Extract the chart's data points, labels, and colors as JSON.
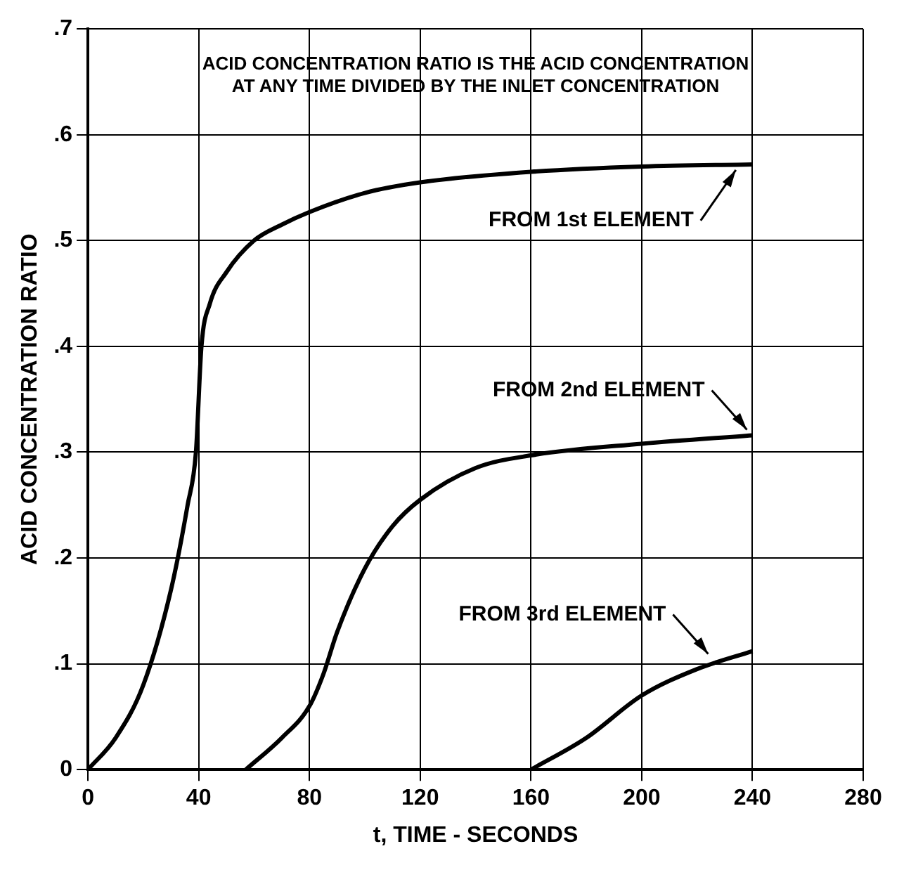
{
  "chart_data": {
    "type": "line",
    "xlabel": "t, TIME - SECONDS",
    "ylabel": "ACID CONCENTRATION RATIO",
    "xlim": [
      0,
      280
    ],
    "xticks": [
      0,
      40,
      80,
      120,
      160,
      200,
      240,
      280
    ],
    "ylim": [
      0,
      0.7
    ],
    "yticks": [
      {
        "value": 0,
        "label": "0"
      },
      {
        "value": 0.1,
        "label": ".1"
      },
      {
        "value": 0.2,
        "label": ".2"
      },
      {
        "value": 0.3,
        "label": ".3"
      },
      {
        "value": 0.4,
        "label": ".4"
      },
      {
        "value": 0.5,
        "label": ".5"
      },
      {
        "value": 0.6,
        "label": ".6"
      },
      {
        "value": 0.7,
        "label": ".7"
      }
    ],
    "grid": true,
    "legend": false,
    "marker": "none",
    "line_style": "solid",
    "series": [
      {
        "color": "#000000",
        "x": [
          0,
          10,
          20,
          30,
          36,
          39,
          41,
          44,
          50,
          60,
          70,
          80,
          100,
          120,
          160,
          200,
          240
        ],
        "values": [
          0,
          0.03,
          0.08,
          0.17,
          0.25,
          0.3,
          0.4,
          0.44,
          0.47,
          0.5,
          0.515,
          0.527,
          0.545,
          0.555,
          0.565,
          0.57,
          0.572
        ]
      },
      {
        "color": "#000000",
        "x": [
          57,
          70,
          80,
          85,
          90,
          100,
          110,
          120,
          140,
          160,
          200,
          240
        ],
        "values": [
          0,
          0.03,
          0.06,
          0.09,
          0.13,
          0.19,
          0.23,
          0.255,
          0.285,
          0.297,
          0.308,
          0.316
        ]
      },
      {
        "color": "#000000",
        "x": [
          160,
          180,
          200,
          220,
          240
        ],
        "values": [
          0,
          0.03,
          0.07,
          0.095,
          0.112
        ]
      }
    ],
    "annotations": [
      "ACID CONCENTRATION RATIO IS THE ACID CONCENTRATION\nAT ANY TIME DIVIDED BY THE INLET CONCENTRATION",
      {
        "text": "FROM 1st ELEMENT",
        "x": 234,
        "y": 0.572
      },
      {
        "text": "FROM 2nd ELEMENT",
        "x": 238,
        "y": 0.316
      },
      {
        "text": "FROM 3rd ELEMENT",
        "x": 224,
        "y": 0.104
      }
    ]
  }
}
